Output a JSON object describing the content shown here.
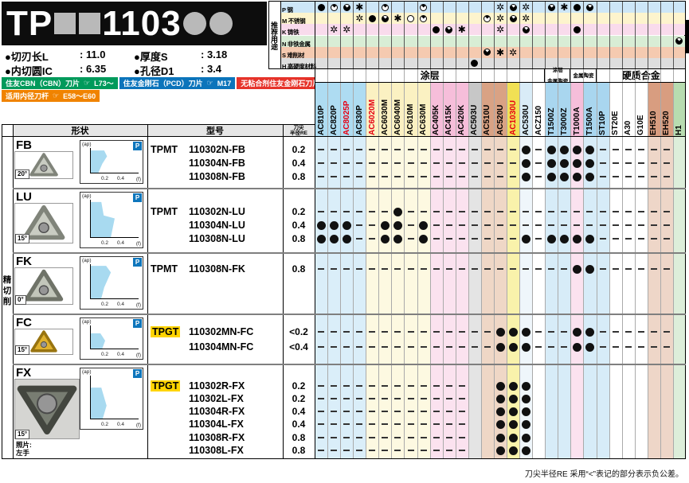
{
  "title": {
    "prefix": "TP",
    "mid": "1103"
  },
  "specs": [
    {
      "label": "●切刃长L",
      "value": ": 11.0"
    },
    {
      "label": "●厚度S",
      "value": ": 3.18"
    },
    {
      "label": "●内切圆IC",
      "value": ": 6.35"
    },
    {
      "label": "●孔径D1",
      "value": ": 3.4"
    }
  ],
  "banners": [
    {
      "text": "住友CBN（CBN）刀片",
      "icon": "☞",
      "ref": "L73～",
      "color": "#009a5b"
    },
    {
      "text": "住友金刚石（PCD）刀片",
      "icon": "☞",
      "ref": "M17",
      "color": "#0b74bb"
    },
    {
      "text": "无粘合剂住友金刚石刀片",
      "icon": "☞",
      "ref": "M26",
      "color": "#e6332a"
    },
    {
      "text": "适用内径刀杆",
      "icon": "☞",
      "ref": "E58～E60",
      "color": "#f08300"
    }
  ],
  "usage": {
    "label": "推荐用途",
    "rows": [
      {
        "code": "P",
        "name": "钢",
        "bg": "#cde6f7"
      },
      {
        "code": "M",
        "name": "不锈钢",
        "bg": "#fdf4cd"
      },
      {
        "code": "K",
        "name": "铸铁",
        "bg": "#f9dbec"
      },
      {
        "code": "N",
        "name": "非铁金属",
        "bg": "#d8edd5"
      },
      {
        "code": "S",
        "name": "难削材",
        "bg": "#f5cab0"
      },
      {
        "code": "H",
        "name": "高硬度材料",
        "bg": "#dedede"
      }
    ]
  },
  "matrix": {
    "P": "FQTS.Q..Q.....XTX.TSFT.......",
    "M": "...XFTSOQ....QXTX............",
    "K": ".XX......FTS..X.T...F........",
    "N": "............................T",
    "S": ".............TSX.............",
    "H": "............F................"
  },
  "groups": [
    {
      "lines": [
        "涂层"
      ],
      "span": 18,
      "big": true
    },
    {
      "lines": [
        "涂层",
        "金属陶瓷"
      ],
      "span": 2,
      "big": false
    },
    {
      "lines": [
        "金属陶瓷"
      ],
      "span": 2,
      "big": false
    },
    {
      "lines": [
        "硬质合金"
      ],
      "span": 7,
      "big": true
    }
  ],
  "grades": [
    {
      "name": "AC810P",
      "hdr": "#aedcf2",
      "body": "#daeef9"
    },
    {
      "name": "AC820P",
      "hdr": "#aedcf2",
      "body": "#daeef9"
    },
    {
      "name": "AC8025P",
      "hdr": "#aedcf2",
      "body": "#daeef9",
      "red": true
    },
    {
      "name": "AC830P",
      "hdr": "#aedcf2",
      "body": "#daeef9"
    },
    {
      "name": "AC6020M",
      "hdr": "#fbf1c2",
      "body": "#fdf9e1",
      "red": true
    },
    {
      "name": "AC6030M",
      "hdr": "#fbf1c2",
      "body": "#fdf9e1"
    },
    {
      "name": "AC6040M",
      "hdr": "#fbf1c2",
      "body": "#fdf9e1"
    },
    {
      "name": "AC610M",
      "hdr": "#fbf1c2",
      "body": "#fdf9e1"
    },
    {
      "name": "AC630M",
      "hdr": "#fbf1c2",
      "body": "#fdf9e1"
    },
    {
      "name": "AC405K",
      "hdr": "#f6beda",
      "body": "#fbe2ef"
    },
    {
      "name": "AC415K",
      "hdr": "#f6beda",
      "body": "#fbe2ef"
    },
    {
      "name": "AC420K",
      "hdr": "#f6beda",
      "body": "#fbe2ef"
    },
    {
      "name": "AC503U",
      "hdr": "#c7c7c7",
      "body": "#e4e4e4"
    },
    {
      "name": "AC510U",
      "hdr": "#d9a284",
      "body": "#efd7c6"
    },
    {
      "name": "AC520U",
      "hdr": "#d9a284",
      "body": "#efd7c6"
    },
    {
      "name": "AC1030U",
      "hdr": "#f1e054",
      "body": "#f9f2ab",
      "red": true
    },
    {
      "name": "AC530U",
      "hdr": "#d9ecf7",
      "body": "#eff6fb"
    },
    {
      "name": "ACZ150",
      "hdr": "#ffffff",
      "body": "#ffffff"
    },
    {
      "name": "T1500Z",
      "hdr": "#a9d6ef",
      "body": "#d7ecf8"
    },
    {
      "name": "T3000Z",
      "hdr": "#a9d6ef",
      "body": "#d7ecf8"
    },
    {
      "name": "T1000A",
      "hdr": "#f6beda",
      "body": "#fbe2ef"
    },
    {
      "name": "T1500A",
      "hdr": "#a9d6ef",
      "body": "#d7ecf8"
    },
    {
      "name": "ST10P",
      "hdr": "#a9d6ef",
      "body": "#d7ecf8"
    },
    {
      "name": "ST20E",
      "hdr": "#ffffff",
      "body": "#ffffff"
    },
    {
      "name": "A30",
      "hdr": "#ffffff",
      "body": "#ffffff"
    },
    {
      "name": "G10E",
      "hdr": "#ffffff",
      "body": "#ffffff"
    },
    {
      "name": "EH510",
      "hdr": "#d89d80",
      "body": "#eed6c8"
    },
    {
      "name": "EH520",
      "hdr": "#d89d80",
      "body": "#eed6c8"
    },
    {
      "name": "H1",
      "hdr": "#b7dcb0",
      "body": "#ddeeda"
    }
  ],
  "table": {
    "shape_header": "形状",
    "model_header": "型号",
    "re_header_1": "刀尖",
    "re_header_2": "半径RE"
  },
  "sidebar": "精切削",
  "chart": {
    "y_label": "(ap)",
    "x_label": "(f)",
    "ticks": [
      "0.2",
      "0.4"
    ],
    "badge": "P"
  },
  "blocks": [
    {
      "label": "FB",
      "angle": "20°",
      "chart_shape": "fb",
      "dash_cols": 28,
      "note_lines": [],
      "photo": {
        "face": "#c9ccc2",
        "edge": "#80847a",
        "bg": "#ffffff",
        "flip": false,
        "hole": 6.5
      },
      "rows": [
        {
          "prefix": "TPMT",
          "model": "110302N-FB",
          "re": "0.2",
          "dots": [
            17,
            19,
            20,
            21,
            22
          ]
        },
        {
          "prefix": "",
          "model": "110304N-FB",
          "re": "0.4",
          "dots": [
            17,
            19,
            20,
            21,
            22
          ]
        },
        {
          "prefix": "",
          "model": "110308N-FB",
          "re": "0.8",
          "dots": [
            17,
            19,
            20,
            21,
            22
          ]
        }
      ]
    },
    {
      "label": "LU",
      "angle": "15°",
      "chart_shape": "lu",
      "dash_cols": 28,
      "note_lines": [],
      "photo": {
        "face": "#c9ccc2",
        "edge": "#80847a",
        "bg": "#ffffff",
        "flip": false,
        "hole": 6.5
      },
      "rows": [
        {
          "prefix": "TPMT",
          "model": "110302N-LU",
          "re": "0.2",
          "dots": [
            7
          ]
        },
        {
          "prefix": "",
          "model": "110304N-LU",
          "re": "0.4",
          "dots": [
            1,
            2,
            3,
            6,
            7,
            9
          ]
        },
        {
          "prefix": "",
          "model": "110308N-LU",
          "re": "0.8",
          "dots": [
            1,
            2,
            3,
            6,
            7,
            9,
            17,
            19,
            20,
            21,
            22
          ]
        }
      ]
    },
    {
      "label": "FK",
      "angle": "0°",
      "chart_shape": "fk",
      "dash_cols": 28,
      "note_lines": [],
      "photo": {
        "face": "#c2c6ba",
        "edge": "#6f7368",
        "bg": "#ffffff",
        "flip": false,
        "hole": 6.5
      },
      "rows": [
        {
          "prefix": "TPMT",
          "model": "110308N-FK",
          "re": "0.8",
          "dots": [
            21,
            22
          ]
        }
      ]
    },
    {
      "label": "FC",
      "angle": "15°",
      "chart_shape": "fc",
      "dash_cols": 28,
      "note_lines": [],
      "photo": {
        "face": "#e0b22f",
        "edge": "#987410",
        "bg": "#ffffff",
        "flip": false,
        "hole": 6
      },
      "rows": [
        {
          "prefix": "TPGT",
          "prefix_hl": true,
          "model": "110302MN-FC",
          "re": "<0.2",
          "dots": [
            15,
            16,
            17,
            21,
            22
          ]
        },
        {
          "prefix": "",
          "model": "110304MN-FC",
          "re": "<0.4",
          "dots": [
            15,
            16,
            17,
            21,
            22
          ]
        }
      ]
    },
    {
      "label": "FX",
      "angle": "15°",
      "chart_shape": "fx",
      "dash_cols": 12,
      "note_lines": [
        "照片:",
        "左手"
      ],
      "photo": {
        "face": "#787d72",
        "edge": "#43463f",
        "bg": "#d5d5d2",
        "flip": true,
        "hole": 9
      },
      "rows": [
        {
          "prefix": "TPGT",
          "prefix_hl": true,
          "model": "110302R-FX",
          "re": "0.2",
          "dots": [
            15,
            16,
            17
          ]
        },
        {
          "prefix": "",
          "model": "110302L-FX",
          "re": "0.2",
          "dots": [
            15,
            16,
            17
          ]
        },
        {
          "prefix": "",
          "model": "110304R-FX",
          "re": "0.4",
          "dots": [
            15,
            16,
            17
          ]
        },
        {
          "prefix": "",
          "model": "110304L-FX",
          "re": "0.4",
          "dots": [
            15,
            16,
            17
          ]
        },
        {
          "prefix": "",
          "model": "110308R-FX",
          "re": "0.8",
          "dots": [
            15,
            16,
            17
          ]
        },
        {
          "prefix": "",
          "model": "110308L-FX",
          "re": "0.8",
          "dots": [
            15,
            16,
            17
          ]
        }
      ]
    }
  ],
  "footnote": "刀尖半径RE 采用“<”表记的部分表示负公差。"
}
